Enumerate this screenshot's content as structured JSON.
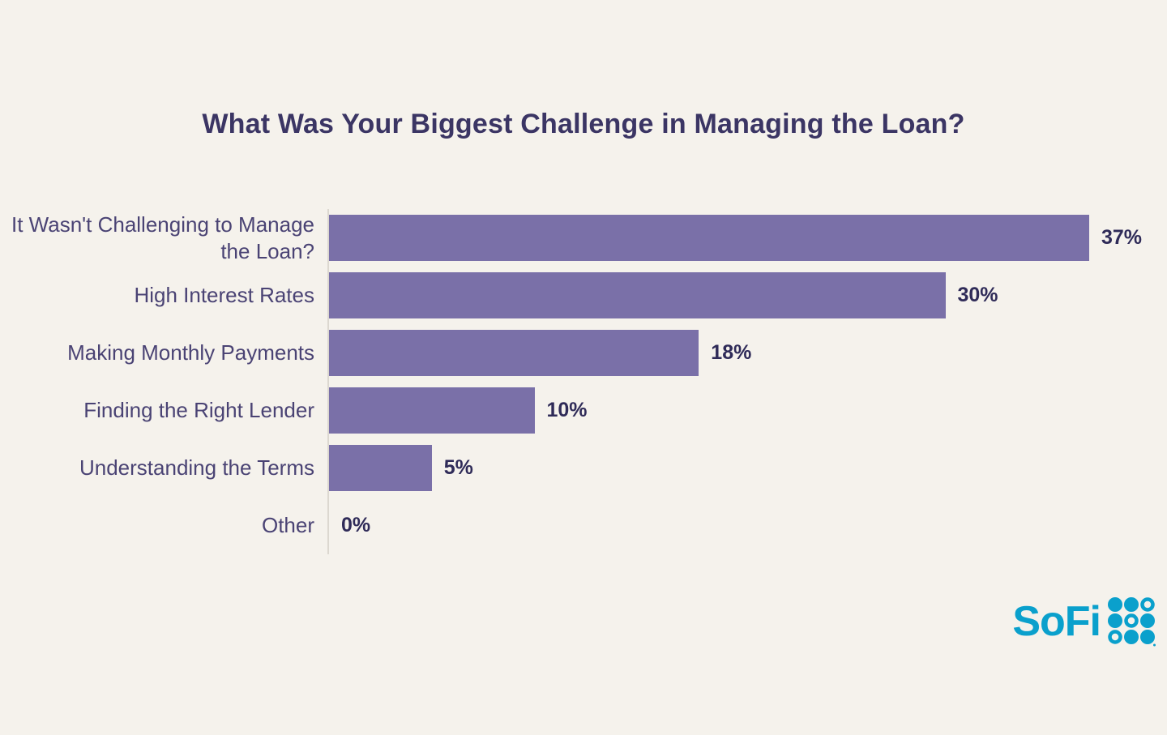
{
  "title": "What Was Your Biggest Challenge in Managing the Loan?",
  "chart_data": {
    "type": "bar",
    "orientation": "horizontal",
    "title": "What Was Your Biggest Challenge in Managing the Loan?",
    "categories": [
      "It Wasn't Challenging to Manage the Loan?",
      "High Interest Rates",
      "Making Monthly Payments",
      "Finding the Right Lender",
      "Understanding the Terms",
      "Other"
    ],
    "values": [
      37,
      30,
      18,
      10,
      5,
      0
    ],
    "value_labels": [
      "37%",
      "30%",
      "18%",
      "10%",
      "5%",
      "0%"
    ],
    "xlabel": "",
    "ylabel": "",
    "xlim": [
      0,
      40
    ],
    "grid": false,
    "legend": false,
    "bar_color": "#7a70a8"
  },
  "branding": {
    "logo_text": "SoFi",
    "logo_color": "#0aa0cc"
  },
  "colors": {
    "background": "#f5f2ec",
    "title": "#3b3564",
    "label": "#4a4374",
    "value": "#2f2b58",
    "axis": "#dcd8d0",
    "bar": "#7a70a8",
    "logo": "#0aa0cc"
  }
}
